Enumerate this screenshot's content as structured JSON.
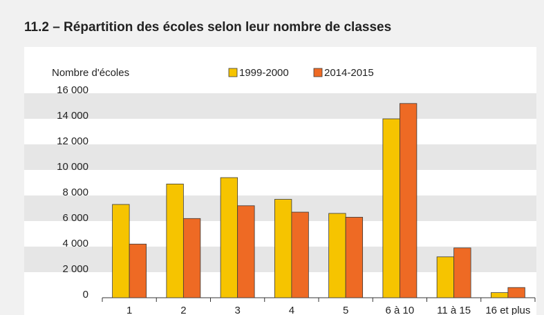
{
  "chart_data": {
    "type": "bar",
    "title": "11.2 – Répartition des écoles selon leur nombre de classes",
    "y_label": "Nombre d'écoles",
    "categories": [
      "1",
      "2",
      "3",
      "4",
      "5",
      "6 à 10",
      "11 à 15",
      "16 et plus"
    ],
    "series": [
      {
        "name": "1999-2000",
        "color": "#f6c400",
        "values": [
          7300,
          8900,
          9400,
          7700,
          6600,
          14000,
          3200,
          400
        ]
      },
      {
        "name": "2014-2015",
        "color": "#ee6a24",
        "values": [
          4200,
          6200,
          7200,
          6700,
          6300,
          15200,
          3900,
          800
        ]
      }
    ],
    "ylim": [
      0,
      16000
    ],
    "yticks": [
      0,
      {
        "value": 2000,
        "label": "2 000"
      },
      {
        "value": 4000,
        "label": "4 000"
      },
      {
        "value": 6000,
        "label": "6 000"
      },
      {
        "value": 8000,
        "label": "8 000"
      },
      {
        "value": 10000,
        "label": "10 000"
      },
      {
        "value": 12000,
        "label": "12 000"
      },
      {
        "value": 14000,
        "label": "14 000"
      },
      {
        "value": 16000,
        "label": "16 000"
      }
    ],
    "grid": "bands"
  }
}
